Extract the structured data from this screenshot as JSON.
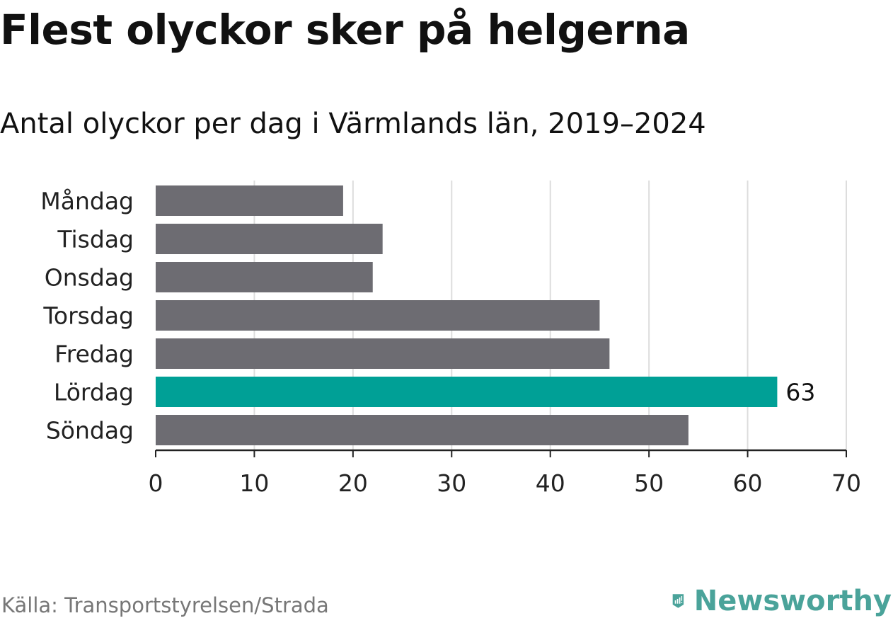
{
  "title": "Flest olyckor sker på helgerna",
  "subtitle": "Antal olyckor per dag i Värmlands län, 2019–2024",
  "source": "Källa: Transportstyrelsen/Strada",
  "brand": {
    "name": "Newsworthy",
    "icon": "newsworthy-logo-icon",
    "color": "#4aa39a"
  },
  "chart_data": {
    "type": "bar",
    "orientation": "horizontal",
    "categories": [
      "Måndag",
      "Tisdag",
      "Onsdag",
      "Torsdag",
      "Fredag",
      "Lördag",
      "Söndag"
    ],
    "values": [
      19,
      23,
      22,
      45,
      46,
      63,
      54
    ],
    "highlight": {
      "category": "Lördag",
      "label": "63"
    },
    "xlim": [
      0,
      70
    ],
    "xticks": [
      0,
      10,
      20,
      30,
      40,
      50,
      60,
      70
    ],
    "grid": "vertical",
    "colors": {
      "bar": "#6d6c72",
      "highlight": "#00a096",
      "grid": "#dddddd",
      "axis": "#222222"
    }
  }
}
